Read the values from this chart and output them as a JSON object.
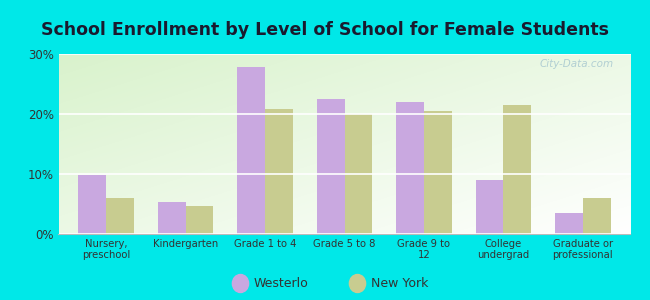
{
  "title": "School Enrollment by Level of School for Female Students",
  "categories": [
    "Nursery,\npreschool",
    "Kindergarten",
    "Grade 1 to 4",
    "Grade 5 to 8",
    "Grade 9 to\n12",
    "College\nundergrad",
    "Graduate or\nprofessional"
  ],
  "westerlo": [
    9.9,
    5.3,
    27.8,
    22.5,
    22.0,
    9.0,
    3.5
  ],
  "new_york": [
    6.0,
    4.7,
    20.8,
    20.0,
    20.5,
    21.5,
    6.0
  ],
  "westerlo_color": "#c9a8e0",
  "new_york_color": "#c8cc90",
  "background_outer": "#00e8e8",
  "title_fontsize": 12.5,
  "ylim": [
    0,
    30
  ],
  "yticks": [
    0,
    10,
    20,
    30
  ],
  "ytick_labels": [
    "0%",
    "10%",
    "20%",
    "30%"
  ],
  "legend_labels": [
    "Westerlo",
    "New York"
  ],
  "watermark": "City-Data.com"
}
